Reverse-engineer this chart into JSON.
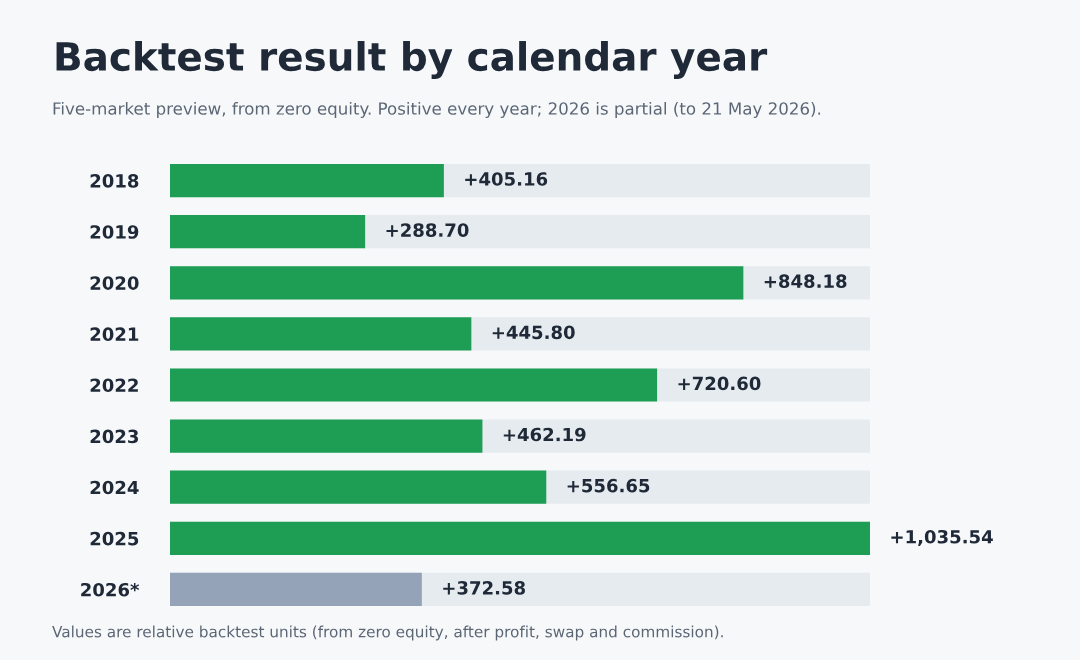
{
  "chart_data": {
    "type": "bar",
    "orientation": "horizontal",
    "title": "Backtest result by calendar year",
    "subtitle": "Five-market preview, from zero equity. Positive every year; 2026 is partial (to 21 May 2026).",
    "categories": [
      "2018",
      "2019",
      "2020",
      "2021",
      "2022",
      "2023",
      "2024",
      "2025",
      "2026*"
    ],
    "values": [
      405.16,
      288.7,
      848.18,
      445.8,
      720.6,
      462.19,
      556.65,
      1035.54,
      372.58
    ],
    "colors": [
      "#1e9e55",
      "#1e9e55",
      "#1e9e55",
      "#1e9e55",
      "#1e9e55",
      "#1e9e55",
      "#1e9e55",
      "#1e9e55",
      "#94a3b8"
    ],
    "value_labels": [
      "+405.16",
      "+288.70",
      "+848.18",
      "+445.80",
      "+720.60",
      "+462.19",
      "+556.65",
      "+1,035.54",
      "+372.58"
    ],
    "xlim": [
      0,
      1035.54
    ],
    "tick_labels": "y",
    "grid": false,
    "legend": false,
    "annotations": [
      "Values are relative backtest units (from zero equity, after profit, swap and commission)."
    ]
  }
}
